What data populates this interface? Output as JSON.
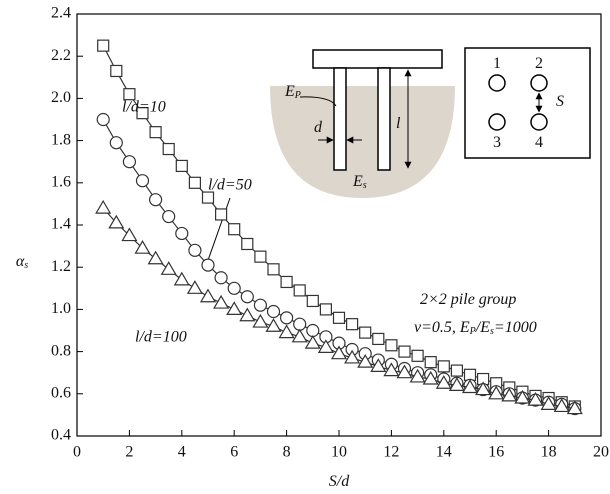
{
  "chart_data": {
    "type": "line",
    "x_label": [
      {
        "text": "S/d"
      }
    ],
    "y_label": [
      {
        "text": "α"
      },
      {
        "subscript": "s"
      }
    ],
    "xlim": [
      0,
      20
    ],
    "xticks": [
      0,
      2,
      4,
      6,
      8,
      10,
      12,
      14,
      16,
      18,
      20
    ],
    "ylim": [
      0.4,
      2.4
    ],
    "yticks": [
      {
        "value": 0.4,
        "label": "0.4"
      },
      {
        "value": 0.6,
        "label": "0.6"
      },
      {
        "value": 0.8,
        "label": "0.8"
      },
      {
        "value": 1.0,
        "label": "1.0"
      },
      {
        "value": 1.2,
        "label": "1.2"
      },
      {
        "value": 1.4,
        "label": "1.4"
      },
      {
        "value": 1.6,
        "label": "1.6"
      },
      {
        "value": 1.8,
        "label": "1.8"
      },
      {
        "value": 2.0,
        "label": "2.0"
      },
      {
        "value": 2.2,
        "label": "2.2"
      },
      {
        "value": 2.4,
        "label": "2.4"
      }
    ],
    "x": [
      1,
      1.5,
      2,
      2.5,
      3,
      3.5,
      4,
      4.5,
      5,
      5.5,
      6,
      6.5,
      7,
      7.5,
      8,
      8.5,
      9,
      9.5,
      10,
      10.5,
      11,
      11.5,
      12,
      12.5,
      13,
      13.5,
      14,
      14.5,
      15,
      15.5,
      16,
      16.5,
      17,
      17.5,
      18,
      18.5,
      19
    ],
    "series": [
      {
        "name": "l/d=10",
        "marker": "square",
        "color": "#333333",
        "values": [
          2.25,
          2.13,
          2.02,
          1.93,
          1.84,
          1.76,
          1.68,
          1.6,
          1.53,
          1.45,
          1.38,
          1.31,
          1.25,
          1.19,
          1.13,
          1.09,
          1.04,
          1.0,
          0.96,
          0.93,
          0.89,
          0.86,
          0.83,
          0.8,
          0.78,
          0.75,
          0.73,
          0.71,
          0.69,
          0.67,
          0.65,
          0.63,
          0.61,
          0.59,
          0.58,
          0.56,
          0.54
        ]
      },
      {
        "name": "l/d=50",
        "marker": "circle",
        "color": "#333333",
        "values": [
          1.9,
          1.79,
          1.7,
          1.61,
          1.52,
          1.44,
          1.36,
          1.28,
          1.21,
          1.15,
          1.1,
          1.06,
          1.02,
          0.99,
          0.96,
          0.93,
          0.9,
          0.87,
          0.84,
          0.81,
          0.79,
          0.76,
          0.74,
          0.72,
          0.7,
          0.69,
          0.67,
          0.65,
          0.64,
          0.62,
          0.61,
          0.6,
          0.58,
          0.57,
          0.56,
          0.55,
          0.53
        ]
      },
      {
        "name": "l/d=100",
        "marker": "triangle",
        "color": "#333333",
        "values": [
          1.48,
          1.41,
          1.35,
          1.29,
          1.24,
          1.19,
          1.14,
          1.1,
          1.06,
          1.03,
          1.0,
          0.97,
          0.94,
          0.92,
          0.89,
          0.87,
          0.84,
          0.82,
          0.79,
          0.77,
          0.75,
          0.73,
          0.71,
          0.7,
          0.68,
          0.67,
          0.65,
          0.64,
          0.63,
          0.62,
          0.6,
          0.59,
          0.58,
          0.57,
          0.55,
          0.54,
          0.53
        ]
      }
    ],
    "annotations": [
      [
        {
          "text": "2×2 pile group"
        }
      ],
      [
        {
          "text": "ν=0.5, E"
        },
        {
          "subscript": "P"
        },
        {
          "text": "/E"
        },
        {
          "subscript": "s"
        },
        {
          "text": "=1000"
        }
      ]
    ],
    "inset_labels": [
      [
        {
          "text": "E"
        },
        {
          "subscript": "P"
        }
      ],
      [
        {
          "text": "d"
        }
      ],
      [
        {
          "text": "l"
        }
      ],
      [
        {
          "text": "E"
        },
        {
          "subscript": "s"
        }
      ],
      [
        {
          "text": "1"
        }
      ],
      [
        {
          "text": "2"
        }
      ],
      [
        {
          "text": "3"
        }
      ],
      [
        {
          "text": "4"
        }
      ],
      [
        {
          "text": "S"
        }
      ]
    ]
  }
}
